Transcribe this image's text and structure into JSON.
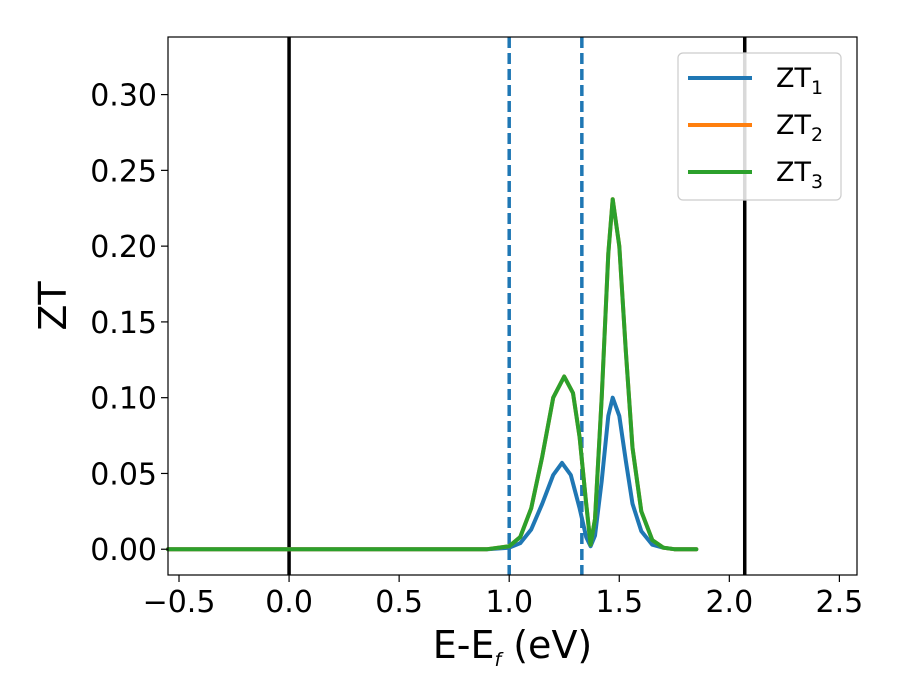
{
  "chart_data": {
    "type": "line",
    "xlabel": {
      "main": "E-E",
      "sub": "f",
      "rest": " (eV)"
    },
    "ylabel": "ZT",
    "xlim": [
      -0.55,
      2.58
    ],
    "ylim": [
      -0.017,
      0.338
    ],
    "xticks": [
      {
        "value": -0.5,
        "label": "−0.5"
      },
      {
        "value": 0.0,
        "label": "0.0"
      },
      {
        "value": 0.5,
        "label": "0.5"
      },
      {
        "value": 1.0,
        "label": "1.0"
      },
      {
        "value": 1.5,
        "label": "1.5"
      },
      {
        "value": 2.0,
        "label": "2.0"
      },
      {
        "value": 2.5,
        "label": "2.5"
      }
    ],
    "yticks": [
      {
        "value": 0.0,
        "label": "0.00"
      },
      {
        "value": 0.05,
        "label": "0.05"
      },
      {
        "value": 0.1,
        "label": "0.10"
      },
      {
        "value": 0.15,
        "label": "0.15"
      },
      {
        "value": 0.2,
        "label": "0.20"
      },
      {
        "value": 0.25,
        "label": "0.25"
      },
      {
        "value": 0.3,
        "label": "0.30"
      }
    ],
    "grid": false,
    "legend_position": "top-right",
    "vertical_lines": [
      {
        "x": 0.0,
        "style": "solid",
        "color": "#000000"
      },
      {
        "x": 2.07,
        "style": "solid",
        "color": "#000000"
      },
      {
        "x": 1.0,
        "style": "dashed",
        "color": "#1f77b4"
      },
      {
        "x": 1.33,
        "style": "dashed",
        "color": "#1f77b4"
      }
    ],
    "series": [
      {
        "name": "ZT",
        "sub": "1",
        "color": "#1f77b4",
        "x": [
          -0.55,
          0.9,
          1.0,
          1.05,
          1.1,
          1.15,
          1.2,
          1.24,
          1.28,
          1.32,
          1.35,
          1.37,
          1.39,
          1.42,
          1.45,
          1.47,
          1.5,
          1.53,
          1.56,
          1.6,
          1.65,
          1.7,
          1.75,
          1.85
        ],
        "y": [
          0.0,
          0.0,
          0.001,
          0.004,
          0.013,
          0.03,
          0.049,
          0.057,
          0.049,
          0.027,
          0.008,
          0.002,
          0.009,
          0.045,
          0.088,
          0.1,
          0.088,
          0.058,
          0.03,
          0.012,
          0.003,
          0.001,
          0.0,
          0.0
        ]
      },
      {
        "name": "ZT",
        "sub": "2",
        "color": "#ff7f0e",
        "x": [
          -0.55,
          0.9,
          1.0,
          1.05,
          1.1,
          1.15,
          1.2,
          1.25,
          1.29,
          1.32,
          1.35,
          1.37,
          1.39,
          1.42,
          1.45,
          1.47,
          1.5,
          1.53,
          1.56,
          1.6,
          1.65,
          1.7,
          1.75,
          1.85
        ],
        "y": [
          0.0,
          0.0,
          0.002,
          0.008,
          0.027,
          0.061,
          0.1,
          0.114,
          0.103,
          0.074,
          0.03,
          0.003,
          0.02,
          0.1,
          0.195,
          0.231,
          0.2,
          0.13,
          0.067,
          0.025,
          0.006,
          0.001,
          0.0,
          0.0
        ]
      },
      {
        "name": "ZT",
        "sub": "3",
        "color": "#2ca02c",
        "x": [
          -0.55,
          0.9,
          1.0,
          1.05,
          1.1,
          1.15,
          1.2,
          1.25,
          1.29,
          1.32,
          1.35,
          1.37,
          1.39,
          1.42,
          1.45,
          1.47,
          1.5,
          1.53,
          1.56,
          1.6,
          1.65,
          1.7,
          1.75,
          1.85
        ],
        "y": [
          0.0,
          0.0,
          0.002,
          0.008,
          0.027,
          0.061,
          0.1,
          0.114,
          0.103,
          0.074,
          0.03,
          0.003,
          0.02,
          0.1,
          0.195,
          0.231,
          0.2,
          0.13,
          0.067,
          0.025,
          0.006,
          0.001,
          0.0,
          0.0
        ]
      }
    ]
  }
}
